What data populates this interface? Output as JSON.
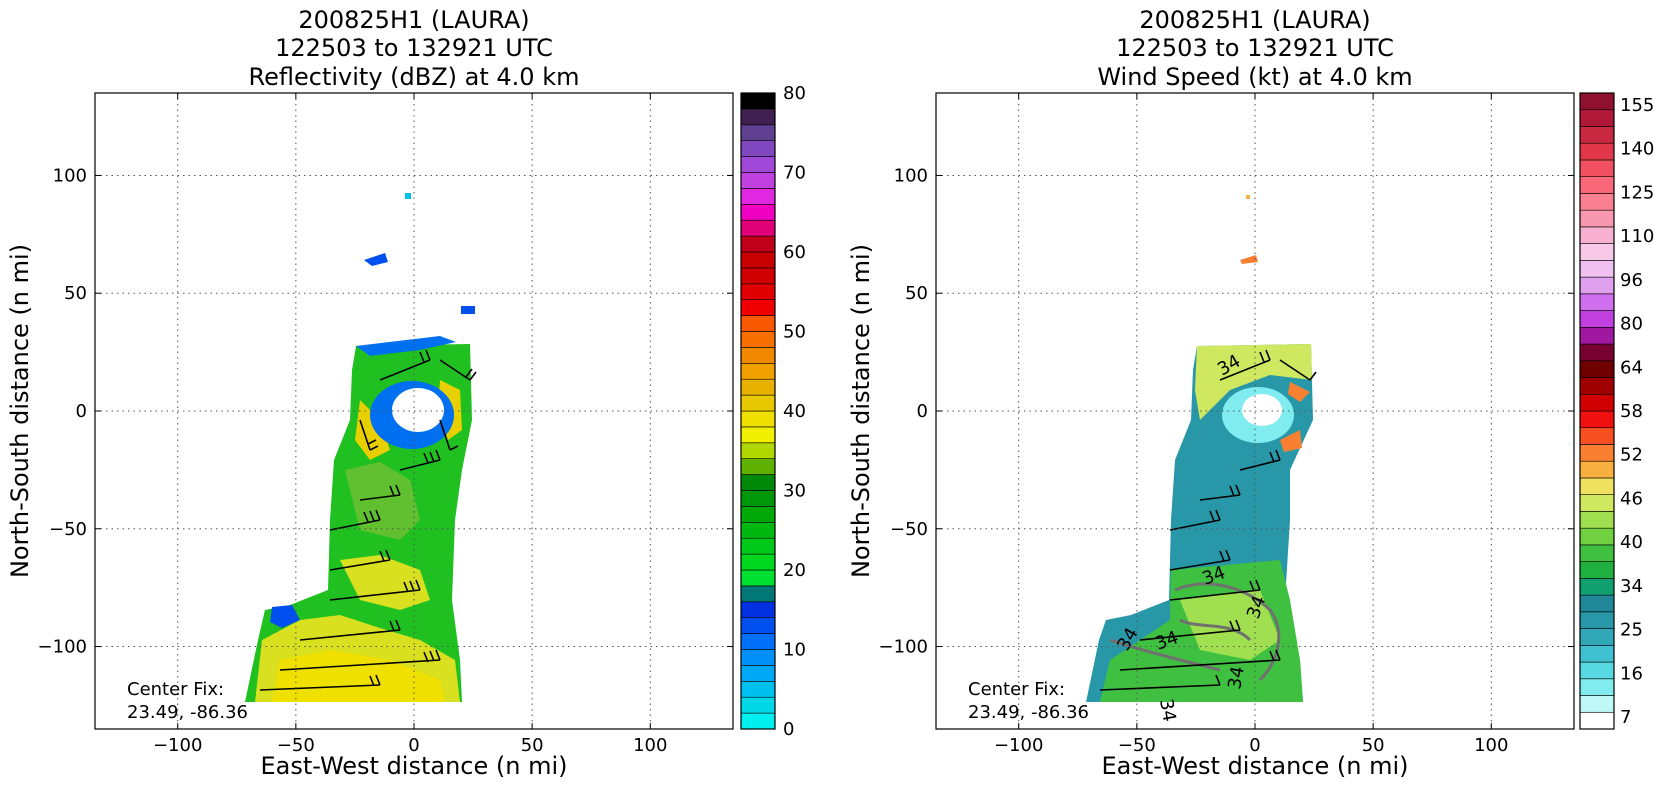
{
  "chart_data": [
    {
      "type": "heatmap",
      "title_lines": [
        "200825H1 (LAURA)",
        "122503 to 132921 UTC",
        "Reflectivity (dBZ) at 4.0 km"
      ],
      "xlabel": "East-West distance (n mi)",
      "ylabel": "North-South distance (n mi)",
      "xlim": [
        -135,
        135
      ],
      "ylim": [
        -135,
        135
      ],
      "xticks": [
        -100,
        -50,
        0,
        50,
        100
      ],
      "yticks": [
        -100,
        -50,
        0,
        50,
        100
      ],
      "grid": true,
      "annotation_lines": [
        "Center Fix:",
        "23.49, -86.36"
      ],
      "colorbar": {
        "min": 0,
        "max": 80,
        "step": 2.5,
        "tick_labels": [
          "0",
          "10",
          "20",
          "30",
          "40",
          "50",
          "60",
          "70",
          "80"
        ],
        "colors": [
          "#00f0f0",
          "#00d8e8",
          "#00c0f0",
          "#00a8f8",
          "#0090f8",
          "#0070f8",
          "#0050f0",
          "#0030e0",
          "#007878",
          "#00e030",
          "#00d820",
          "#00c818",
          "#00b810",
          "#00a808",
          "#009808",
          "#008808",
          "#60b000",
          "#b0d800",
          "#f0f000",
          "#f0e000",
          "#e8c800",
          "#e8b000",
          "#f0a000",
          "#f08800",
          "#f87000",
          "#f85800",
          "#f00000",
          "#e00000",
          "#d00000",
          "#c80000",
          "#c00018",
          "#e00078",
          "#f000c0",
          "#e028e0",
          "#c040e0",
          "#a048d8",
          "#8048c0",
          "#604090",
          "#402050",
          "#000000"
        ]
      },
      "wind_barbs": true
    },
    {
      "type": "heatmap",
      "title_lines": [
        "200825H1 (LAURA)",
        "122503 to 132921 UTC",
        "Wind Speed (kt) at 4.0 km"
      ],
      "xlabel": "East-West distance (n mi)",
      "ylabel": "North-South distance (n mi)",
      "xlim": [
        -135,
        135
      ],
      "ylim": [
        -135,
        135
      ],
      "xticks": [
        -100,
        -50,
        0,
        50,
        100
      ],
      "yticks": [
        -100,
        -50,
        0,
        50,
        100
      ],
      "grid": true,
      "annotation_lines": [
        "Center Fix:",
        "23.49, -86.36"
      ],
      "contour_labels": [
        "34",
        "34",
        "34",
        "34",
        "34",
        "34",
        "34"
      ],
      "colorbar": {
        "tick_labels": [
          "7",
          "16",
          "25",
          "34",
          "40",
          "46",
          "52",
          "58",
          "64",
          "80",
          "96",
          "110",
          "125",
          "140",
          "155"
        ],
        "colors": [
          "#ffffff",
          "#c0f8f8",
          "#80ecf0",
          "#58d8e0",
          "#40c0d0",
          "#30a8b8",
          "#2898a8",
          "#208898",
          "#10a070",
          "#20b040",
          "#40c040",
          "#70d040",
          "#a0e050",
          "#d0e860",
          "#f0e060",
          "#f8b040",
          "#f88030",
          "#f85020",
          "#f01010",
          "#d00000",
          "#a00000",
          "#700000",
          "#780030",
          "#a018a0",
          "#c040e0",
          "#d070f0",
          "#e0a0f0",
          "#f0c0f0",
          "#f8c8e8",
          "#f8b0d0",
          "#f898b0",
          "#f88090",
          "#f86878",
          "#f05060",
          "#e03848",
          "#c82840",
          "#b01838",
          "#901030"
        ]
      },
      "wind_barbs": true
    }
  ]
}
